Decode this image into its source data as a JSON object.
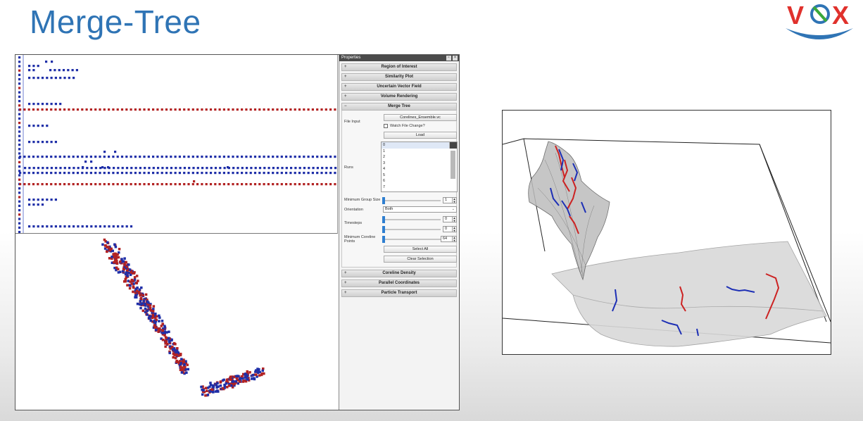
{
  "slide": {
    "title": "Merge-Tree"
  },
  "colors": {
    "title": "#2f74b5",
    "red_series": "#b22222",
    "blue_series": "#1f2fa8",
    "slider_knob": "#2f7fd0"
  },
  "logo": {
    "text": "VOX"
  },
  "properties_panel": {
    "title": "Properties",
    "sections_top": [
      {
        "label": "Region of Interest",
        "state": "collapsed"
      },
      {
        "label": "Similarity Plot",
        "state": "collapsed"
      },
      {
        "label": "Uncertain Vector Field",
        "state": "collapsed"
      },
      {
        "label": "Volume Rendering",
        "state": "collapsed"
      }
    ],
    "merge_tree": {
      "label": "Merge Tree",
      "file_input_label": "File Input",
      "file_button": "Corelines_Ensemble.vc",
      "watch_file_change": "Watch File Change?",
      "load_button": "Load",
      "runs_label": "Runs",
      "runs_items": [
        "0",
        "1",
        "2",
        "3",
        "4",
        "5",
        "6",
        "7"
      ],
      "min_group_size_label": "Minimum Group Size",
      "min_group_size_value": "1",
      "orientation_label": "Orientation",
      "orientation_value": "Both",
      "timesteps_label": "Timesteps",
      "timesteps_value_a": "0",
      "timesteps_value_b": "0",
      "min_coreline_points_label": "Minimum Coreline Points",
      "min_coreline_points_value": "64",
      "select_all_button": "Select All",
      "clear_selection_button": "Clear Selection"
    },
    "sections_bottom": [
      {
        "label": "Coreline Density",
        "state": "collapsed"
      },
      {
        "label": "Parallel Coordinates",
        "state": "collapsed"
      },
      {
        "label": "Particle Transport",
        "state": "collapsed"
      }
    ]
  }
}
